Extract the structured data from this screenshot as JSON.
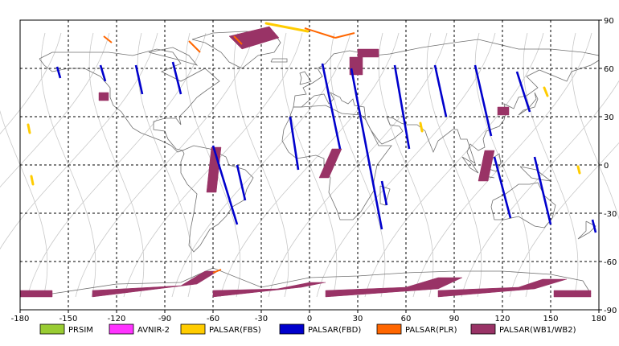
{
  "chart_data": {
    "type": "map",
    "projection": "equirectangular",
    "xlim": [
      -180,
      180
    ],
    "ylim": [
      -90,
      90
    ],
    "x_ticks": [
      -180,
      -150,
      -120,
      -90,
      -60,
      -30,
      0,
      30,
      60,
      90,
      120,
      150,
      180
    ],
    "y_ticks": [
      90,
      60,
      30,
      0,
      -30,
      -60,
      -90
    ],
    "grid": "dashed",
    "legend_position": "bottom",
    "legend": [
      {
        "label": "PRSIM",
        "color": "#99cc33"
      },
      {
        "label": "AVNIR-2",
        "color": "#ff33ff"
      },
      {
        "label": "PALSAR(FBS)",
        "color": "#ffcc00"
      },
      {
        "label": "PALSAR(FBD)",
        "color": "#0000cc"
      },
      {
        "label": "PALSAR(PLR)",
        "color": "#ff6600"
      },
      {
        "label": "PALSAR(WB1/WB2)",
        "color": "#993366"
      }
    ],
    "fbd_passes": [
      [
        [
          -157,
          61
        ],
        [
          -155,
          54
        ]
      ],
      [
        [
          -130,
          62
        ],
        [
          -127,
          52
        ]
      ],
      [
        [
          -108,
          62
        ],
        [
          -104,
          44
        ]
      ],
      [
        [
          -85,
          64
        ],
        [
          -80,
          44
        ]
      ],
      [
        [
          -60,
          12
        ],
        [
          -45,
          -37
        ]
      ],
      [
        [
          -45,
          0
        ],
        [
          -40,
          -22
        ]
      ],
      [
        [
          -12,
          30
        ],
        [
          -7,
          -3
        ]
      ],
      [
        [
          8,
          63
        ],
        [
          19,
          10
        ]
      ],
      [
        [
          26,
          60
        ],
        [
          45,
          -40
        ]
      ],
      [
        [
          45,
          -10
        ],
        [
          48,
          -25
        ]
      ],
      [
        [
          53,
          62
        ],
        [
          62,
          10
        ]
      ],
      [
        [
          78,
          62
        ],
        [
          85,
          30
        ]
      ],
      [
        [
          103,
          62
        ],
        [
          113,
          18
        ]
      ],
      [
        [
          115,
          5
        ],
        [
          125,
          -33
        ]
      ],
      [
        [
          129,
          58
        ],
        [
          137,
          33
        ]
      ],
      [
        [
          140,
          5
        ],
        [
          150,
          -37
        ]
      ],
      [
        [
          176,
          -34
        ],
        [
          178,
          -42
        ]
      ]
    ],
    "wb_strips": [
      [
        [
          -61,
          11
        ],
        [
          -55,
          11
        ],
        [
          -58,
          -17
        ],
        [
          -64,
          -17
        ]
      ],
      [
        [
          14,
          10
        ],
        [
          20,
          10
        ],
        [
          12,
          -8
        ],
        [
          6,
          -8
        ]
      ],
      [
        [
          109,
          9
        ],
        [
          115,
          9
        ],
        [
          111,
          -10
        ],
        [
          105,
          -10
        ]
      ],
      [
        [
          -50,
          80
        ],
        [
          -25,
          86
        ],
        [
          -19,
          79
        ],
        [
          -42,
          72
        ]
      ],
      [
        [
          25,
          67
        ],
        [
          33,
          67
        ],
        [
          33,
          56
        ],
        [
          25,
          56
        ]
      ],
      [
        [
          30,
          72
        ],
        [
          43,
          72
        ],
        [
          43,
          67
        ],
        [
          30,
          67
        ]
      ],
      [
        [
          -131,
          45
        ],
        [
          -125,
          45
        ],
        [
          -125,
          40
        ],
        [
          -131,
          40
        ]
      ],
      [
        [
          117,
          36
        ],
        [
          124,
          36
        ],
        [
          124,
          31
        ],
        [
          117,
          31
        ]
      ],
      [
        [
          -180,
          -82
        ],
        [
          -160,
          -82
        ],
        [
          -160,
          -78
        ],
        [
          -180,
          -78
        ]
      ],
      [
        [
          -135,
          -82
        ],
        [
          -70,
          -74
        ],
        [
          -57,
          -66
        ],
        [
          -65,
          -66
        ],
        [
          -80,
          -75
        ],
        [
          -135,
          -78
        ]
      ],
      [
        [
          -60,
          -82
        ],
        [
          -5,
          -76
        ],
        [
          10,
          -73
        ],
        [
          0,
          -73
        ],
        [
          -20,
          -77
        ],
        [
          -60,
          -78
        ]
      ],
      [
        [
          10,
          -82
        ],
        [
          80,
          -77
        ],
        [
          95,
          -70
        ],
        [
          80,
          -70
        ],
        [
          60,
          -76
        ],
        [
          10,
          -78
        ]
      ],
      [
        [
          80,
          -82
        ],
        [
          140,
          -77
        ],
        [
          160,
          -71
        ],
        [
          145,
          -71
        ],
        [
          130,
          -76
        ],
        [
          80,
          -78
        ]
      ],
      [
        [
          152,
          -82
        ],
        [
          175,
          -82
        ],
        [
          175,
          -78
        ],
        [
          152,
          -78
        ]
      ]
    ],
    "fbs_segments": [
      [
        [
          -27,
          88
        ],
        [
          -1,
          83
        ]
      ],
      [
        [
          -175,
          25
        ],
        [
          -174,
          20
        ]
      ],
      [
        [
          -173,
          -7
        ],
        [
          -172,
          -12
        ]
      ],
      [
        [
          69,
          26
        ],
        [
          70,
          21
        ]
      ],
      [
        [
          146,
          48
        ],
        [
          148,
          43
        ]
      ],
      [
        [
          167,
          -1
        ],
        [
          168,
          -5
        ]
      ]
    ],
    "plr_segments": [
      [
        [
          -128,
          80
        ],
        [
          -123,
          76
        ]
      ],
      [
        [
          -75,
          77
        ],
        [
          -68,
          70
        ]
      ],
      [
        [
          -47,
          80
        ],
        [
          -42,
          75
        ]
      ],
      [
        [
          -3,
          85
        ],
        [
          16,
          79
        ]
      ],
      [
        [
          16,
          79
        ],
        [
          28,
          82
        ]
      ],
      [
        [
          -60,
          -67
        ],
        [
          -55,
          -65
        ]
      ]
    ]
  }
}
